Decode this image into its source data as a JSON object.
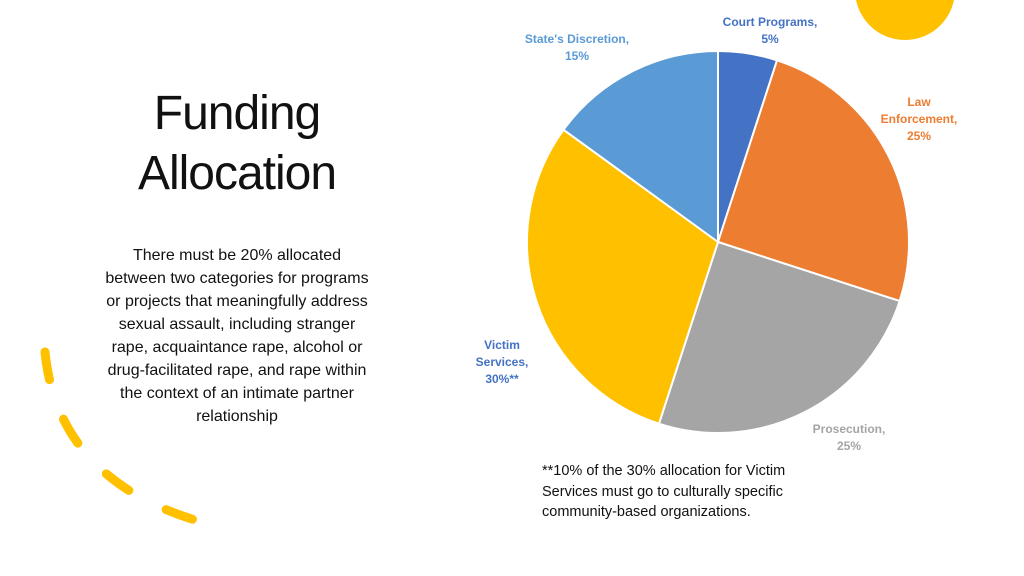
{
  "title": "Funding Allocation",
  "body": "There must be 20% allocated between two categories for programs or projects that meaningfully address sexual assault, including stranger rape, acquaintance rape, alcohol or drug-facilitated rape, and rape within the context of an intimate partner relationship",
  "footnote": "**10% of the 30% allocation for Victim Services must go to culturally specific community-based organizations.",
  "chart_data": {
    "type": "pie",
    "values": [
      5,
      25,
      25,
      30,
      15
    ],
    "value_labels": [
      "Court Programs, 5%",
      "Law Enforcement, 25%",
      "Prosecution, 25%",
      "Victim Services, 30%**",
      "State's Discretion, 15%"
    ],
    "colors": [
      "#4472c4",
      "#ed7d31",
      "#a5a5a5",
      "#ffc000",
      "#5b9bd5"
    ],
    "label_colors": [
      "#4472c4",
      "#ed7d31",
      "#a5a5a5",
      "#4472c4",
      "#5b9bd5"
    ]
  }
}
